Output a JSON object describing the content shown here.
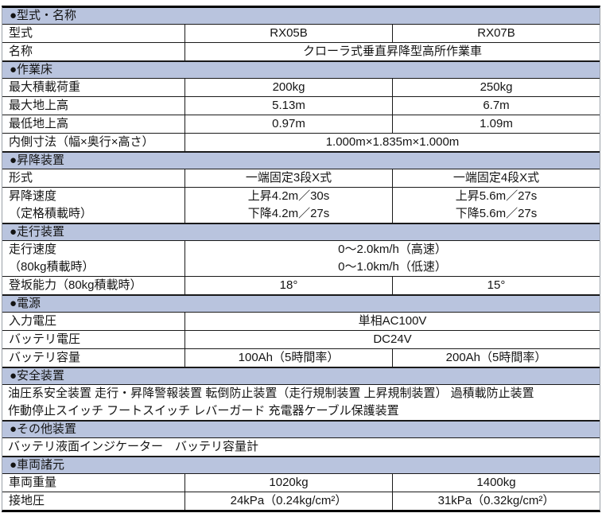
{
  "colors": {
    "section_header_bg": "#b9c4de",
    "grid_line": "#1a1a1a",
    "outer_side_border": "#9aa0a8",
    "text": "#141414"
  },
  "table": {
    "rows": [
      {
        "type": "section",
        "title": "●型式・名称"
      },
      {
        "type": "data",
        "label": "型式",
        "values": [
          "RX05B",
          "RX07B"
        ]
      },
      {
        "type": "data",
        "label": "名称",
        "span": "クローラ式垂直昇降型高所作業車"
      },
      {
        "type": "section",
        "title": "●作業床"
      },
      {
        "type": "data",
        "label": "最大積載荷重",
        "values": [
          "200kg",
          "250kg"
        ]
      },
      {
        "type": "data",
        "label": "最大地上高",
        "values": [
          "5.13m",
          "6.7m"
        ]
      },
      {
        "type": "data",
        "label": "最低地上高",
        "values": [
          "0.97m",
          "1.09m"
        ]
      },
      {
        "type": "data",
        "label": "内側寸法（幅×奥行×高さ）",
        "span": "1.000m×1.835m×1.000m"
      },
      {
        "type": "section",
        "title": "●昇降装置"
      },
      {
        "type": "data",
        "label": "形式",
        "values": [
          "一端固定3段X式",
          "一端固定4段X式"
        ]
      },
      {
        "type": "data",
        "label": "昇降速度\n（定格積載時）",
        "values": [
          "上昇4.2m／30s\n下降4.2m／27s",
          "上昇5.6m／27s\n下降5.6m／27s"
        ]
      },
      {
        "type": "section",
        "title": "●走行装置"
      },
      {
        "type": "data",
        "label": "走行速度\n（80kg積載時）",
        "span": "0～2.0km/h（高速）\n0～1.0km/h（低速）"
      },
      {
        "type": "data",
        "label": "登坂能力（80kg積載時）",
        "values": [
          "18°",
          "15°"
        ]
      },
      {
        "type": "section",
        "title": "●電源"
      },
      {
        "type": "data",
        "label": "入力電圧",
        "span": "単相AC100V"
      },
      {
        "type": "data",
        "label": "バッテリ電圧",
        "span": "DC24V"
      },
      {
        "type": "data",
        "label": "バッテリ容量",
        "values": [
          "100Ah（5時間率）",
          "200Ah（5時間率）"
        ]
      },
      {
        "type": "section",
        "title": "●安全装置"
      },
      {
        "type": "full",
        "text": "油圧系安全装置 走行・昇降警報装置 転倒防止装置（走行規制装置 上昇規制装置） 過積載防止装置\n作動停止スイッチ フートスイッチ レバーガード 充電器ケーブル保護装置"
      },
      {
        "type": "section",
        "title": "●その他装置"
      },
      {
        "type": "full",
        "text": "バッテリ液面インジケーター　バッテリ容量計"
      },
      {
        "type": "section",
        "title": "●車両諸元"
      },
      {
        "type": "data",
        "label": "車両重量",
        "values": [
          "1020kg",
          "1400kg"
        ]
      },
      {
        "type": "data",
        "label": "接地圧",
        "values": [
          "24kPa（0.24kg/cm²）",
          "31kPa（0.32kg/cm²）"
        ]
      }
    ]
  }
}
